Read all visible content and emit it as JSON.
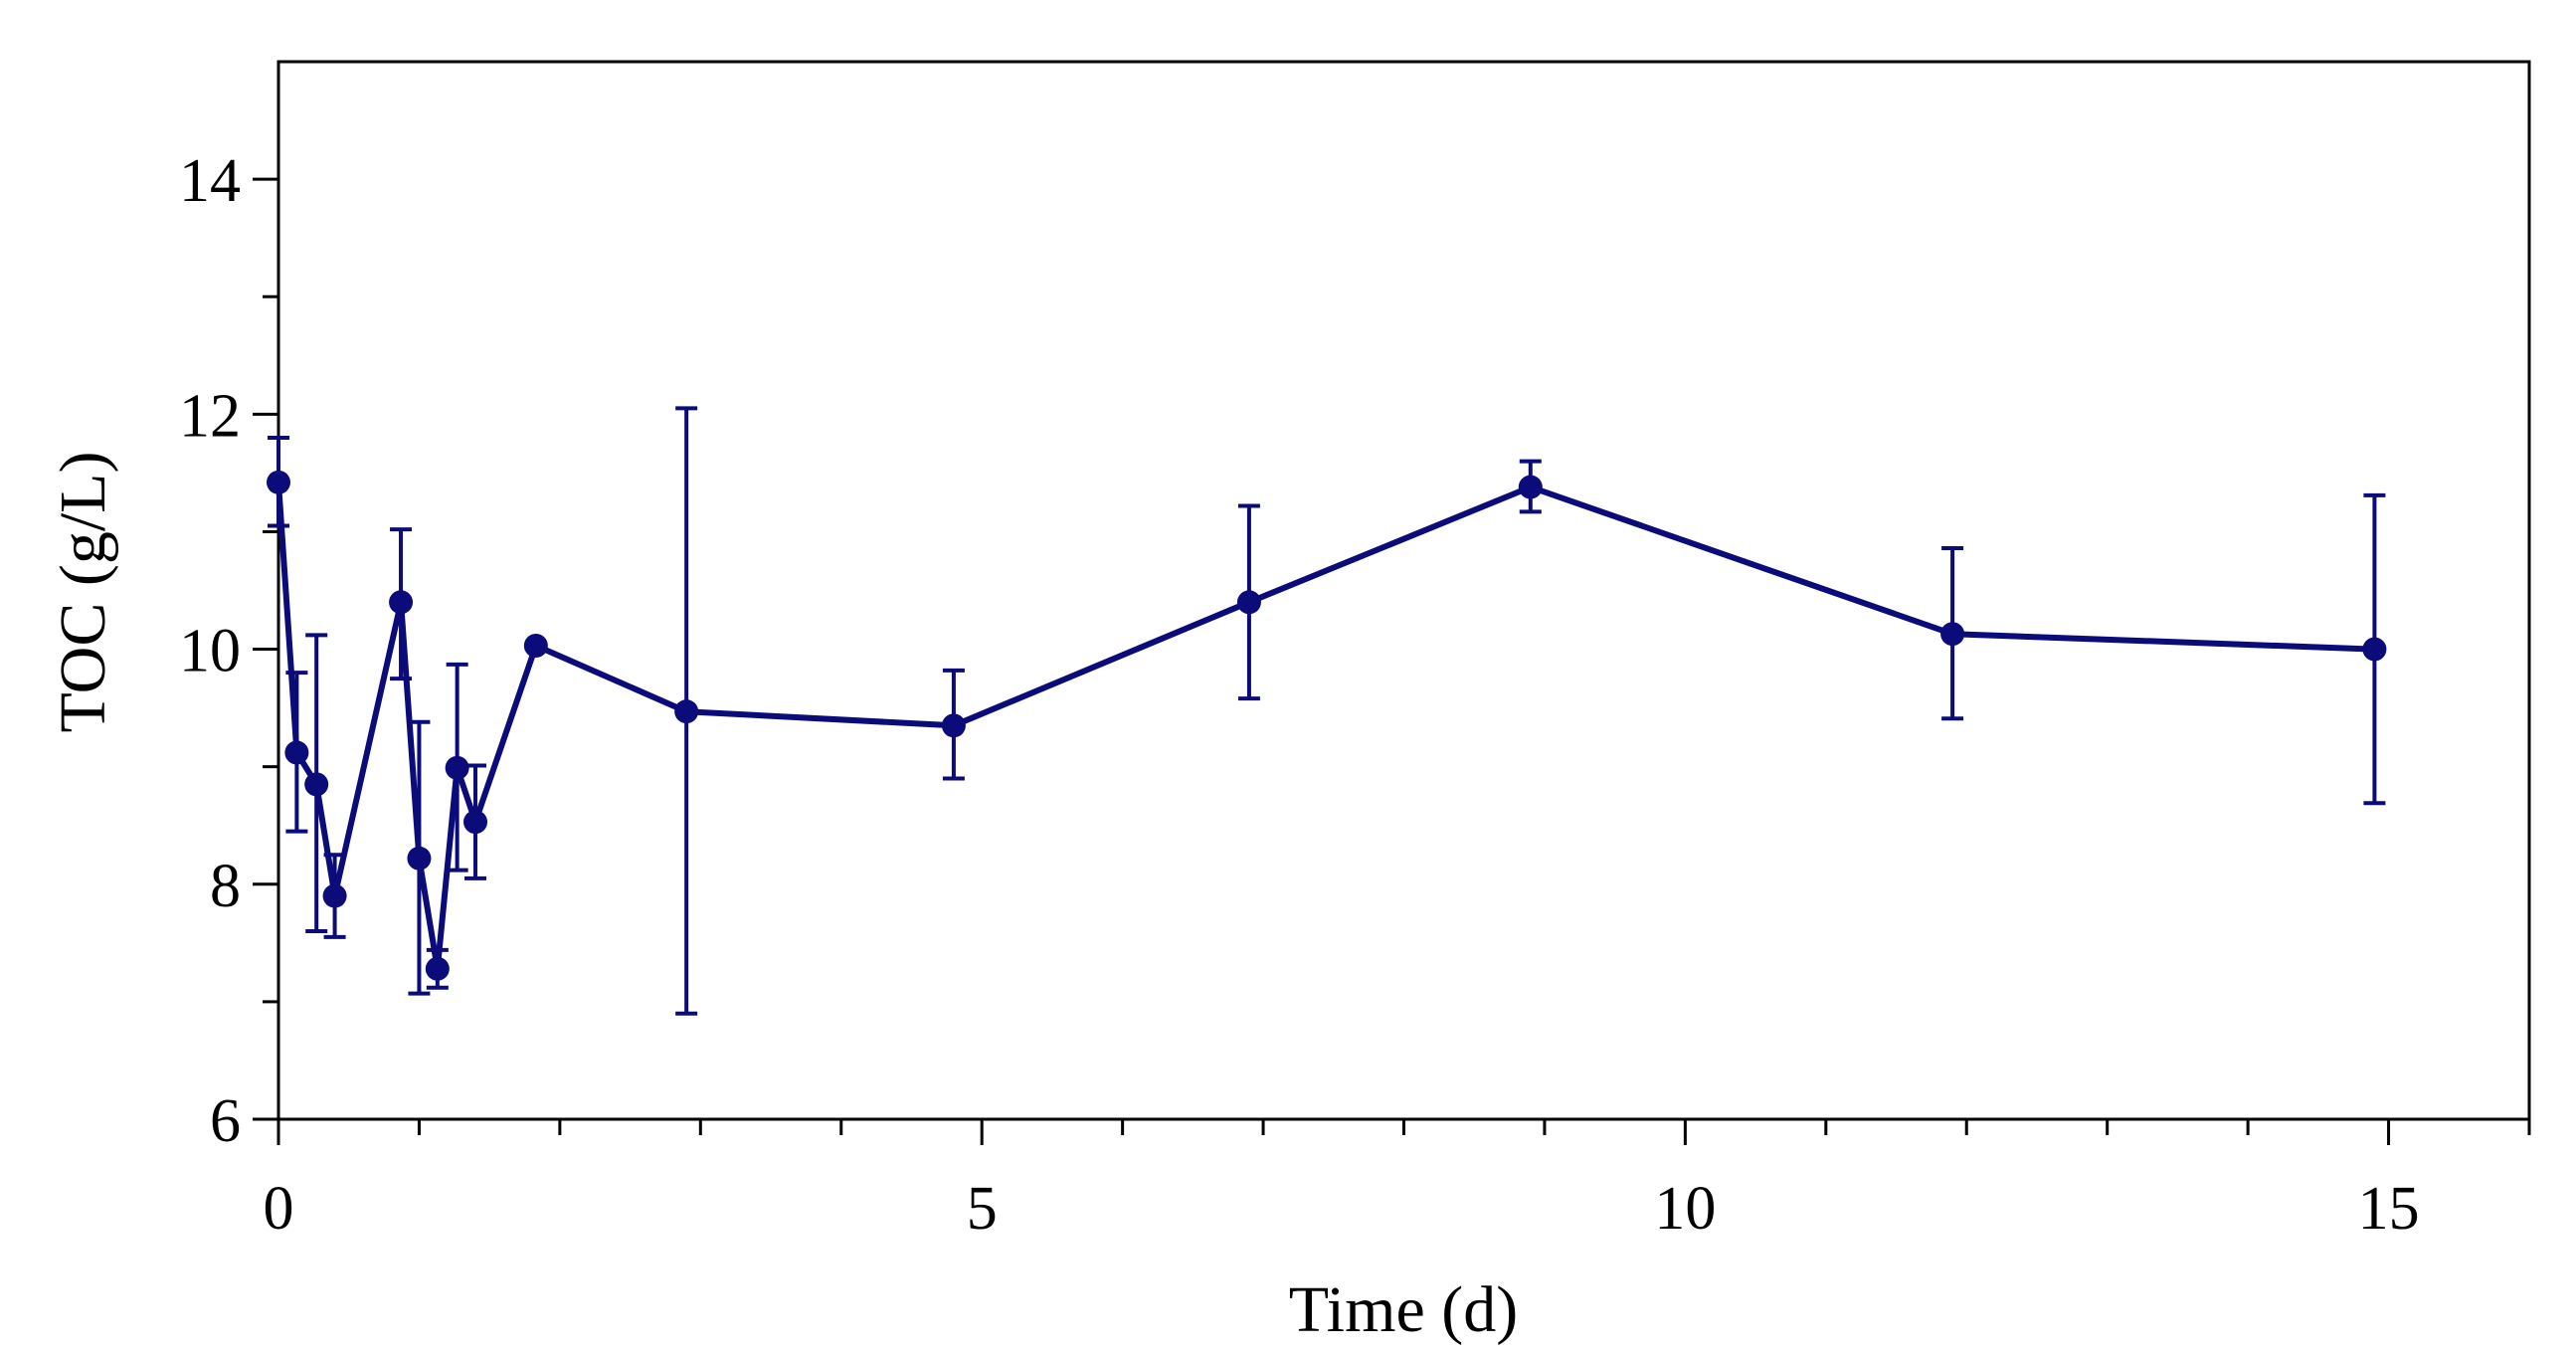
{
  "colors": {
    "series": "#0b0b7a",
    "axis": "#000000",
    "background": "#ffffff"
  },
  "chart_data": {
    "type": "line",
    "title": "",
    "xlabel": "Time (d)",
    "ylabel": "TOC (g/L)",
    "xlim": [
      0,
      16
    ],
    "ylim": [
      6,
      15
    ],
    "grid": false,
    "x_major_ticks": [
      0,
      5,
      10,
      15
    ],
    "x_tick_labels": [
      "0",
      "5",
      "10",
      "15"
    ],
    "x_minor_ticks": [
      1,
      2,
      3,
      4,
      6,
      7,
      8,
      9,
      11,
      12,
      13,
      14,
      16
    ],
    "y_major_ticks": [
      6,
      8,
      10,
      12,
      14
    ],
    "y_tick_labels": [
      "6",
      "8",
      "10",
      "12",
      "14"
    ],
    "series": [
      {
        "name": "TOC",
        "marker": "circle",
        "points": [
          {
            "x": 0.0,
            "y": 11.42,
            "err_low": 11.05,
            "err_high": 11.8
          },
          {
            "x": 0.13,
            "y": 9.12,
            "err_low": 8.45,
            "err_high": 9.8
          },
          {
            "x": 0.27,
            "y": 8.85,
            "err_low": 7.6,
            "err_high": 10.12
          },
          {
            "x": 0.4,
            "y": 7.9,
            "err_low": 7.55,
            "err_high": 8.25
          },
          {
            "x": 0.87,
            "y": 10.4,
            "err_low": 9.75,
            "err_high": 11.02
          },
          {
            "x": 1.0,
            "y": 8.22,
            "err_low": 7.07,
            "err_high": 9.38
          },
          {
            "x": 1.13,
            "y": 7.28,
            "err_low": 7.12,
            "err_high": 7.44
          },
          {
            "x": 1.27,
            "y": 8.99,
            "err_low": 8.12,
            "err_high": 9.87
          },
          {
            "x": 1.4,
            "y": 8.53,
            "err_low": 8.05,
            "err_high": 9.01
          },
          {
            "x": 1.83,
            "y": 10.03,
            "err_low": 10.03,
            "err_high": 10.03
          },
          {
            "x": 2.9,
            "y": 9.47,
            "err_low": 6.9,
            "err_high": 12.05
          },
          {
            "x": 4.8,
            "y": 9.35,
            "err_low": 8.9,
            "err_high": 9.82
          },
          {
            "x": 6.9,
            "y": 10.4,
            "err_low": 9.58,
            "err_high": 11.22
          },
          {
            "x": 8.9,
            "y": 11.38,
            "err_low": 11.17,
            "err_high": 11.6
          },
          {
            "x": 11.9,
            "y": 10.13,
            "err_low": 9.41,
            "err_high": 10.86
          },
          {
            "x": 14.9,
            "y": 10.0,
            "err_low": 8.69,
            "err_high": 11.31
          }
        ]
      }
    ]
  }
}
